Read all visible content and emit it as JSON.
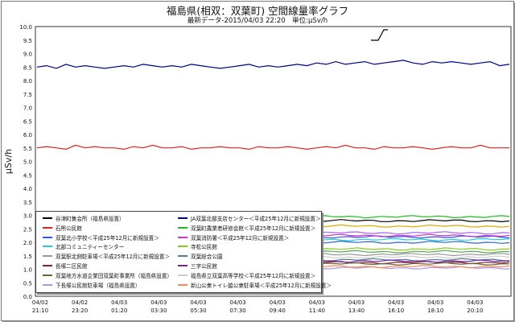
{
  "title": "福島県(相双：双葉町) 空間線量率グラフ",
  "subtitle": "最新データ-2015/04/03 22:20　単位:μSv/h",
  "chart_data": {
    "type": "line",
    "ylabel": "μSv/h",
    "ylim": [
      0,
      10
    ],
    "yticks": [
      "0.0",
      "0.5",
      "1.0",
      "1.5",
      "2.0",
      "2.5",
      "3.0",
      "3.5",
      "4.0",
      "4.5",
      "5.0",
      "5.5",
      "6.0",
      "6.5",
      "7.0",
      "7.5",
      "8.0",
      "8.5",
      "9.0",
      "9.5",
      "10.0"
    ],
    "xticks": [
      {
        "date": "04/02",
        "time": "21:10"
      },
      {
        "date": "04/02",
        "time": "23:20"
      },
      {
        "date": "04/03",
        "time": "01:20"
      },
      {
        "date": "04/03",
        "time": "03:30"
      },
      {
        "date": "04/03",
        "time": "05:30"
      },
      {
        "date": "04/03",
        "time": "07:30"
      },
      {
        "date": "04/03",
        "time": "09:40"
      },
      {
        "date": "04/03",
        "time": "11:40"
      },
      {
        "date": "04/03",
        "time": "13:40"
      },
      {
        "date": "04/03",
        "time": "16:10"
      },
      {
        "date": "04/03",
        "time": "18:10"
      },
      {
        "date": "04/03",
        "time": "20:10"
      }
    ],
    "grid": true,
    "legend_position": "bottom-left",
    "series": [
      {
        "name": "谷津町集会所（福島県設置）",
        "color": "#000000",
        "level": 2.8
      },
      {
        "name": "JA双葉北部支店センター＜平成25年12月に新規設置＞",
        "color": "#00008b",
        "values": [
          8.5,
          8.55,
          8.45,
          8.6,
          8.5,
          8.55,
          8.5,
          8.45,
          8.5,
          8.55,
          8.5,
          8.6,
          8.55,
          8.5,
          8.55,
          8.5,
          8.6,
          8.55,
          8.5,
          8.45,
          8.5,
          8.55,
          8.6,
          8.5,
          8.55,
          8.5,
          8.55,
          8.6,
          8.55,
          8.65,
          8.6,
          8.7,
          8.6,
          8.65,
          8.7,
          8.6,
          8.65,
          8.7,
          8.75,
          8.65,
          8.6,
          8.7,
          8.65,
          8.7,
          8.65,
          8.6,
          8.65,
          8.7,
          8.55,
          8.6
        ]
      },
      {
        "name": "石熊公民館",
        "color": "#dd2222",
        "values": [
          5.5,
          5.55,
          5.5,
          5.45,
          5.6,
          5.5,
          5.55,
          5.5,
          5.5,
          5.45,
          5.55,
          5.5,
          5.6,
          5.5,
          5.5,
          5.55,
          5.45,
          5.5,
          5.5,
          5.55,
          5.5,
          5.5,
          5.45,
          5.55,
          5.5,
          5.5,
          5.55,
          5.5,
          5.45,
          5.5,
          5.55,
          5.5,
          5.6,
          5.5,
          5.5,
          5.45,
          5.55,
          5.5,
          5.5,
          5.55,
          5.5,
          5.45,
          5.5,
          5.55,
          5.5,
          5.5,
          5.6,
          5.5,
          5.5,
          5.5
        ]
      },
      {
        "name": "双葉町農業者研修会館＜平成25年12月に新規設置＞",
        "color": "#22bb22",
        "level": 2.95
      },
      {
        "name": "双葉北小学校＜平成25年12月に新規設置＞",
        "color": "#3355ee",
        "level": 2.2
      },
      {
        "name": "双葉消防署＜平成25年12月に新規設置＞",
        "color": "#cc33cc",
        "level": 2.25
      },
      {
        "name": "北部コミュニティーセンター",
        "color": "#22ccdd",
        "level": 2.1
      },
      {
        "name": "寺松公民館",
        "color": "#88cc22",
        "level": 1.75
      },
      {
        "name": "双葉駅北側駐車場＜平成25年12月に新規設置＞",
        "color": "#999999",
        "level": 1.55
      },
      {
        "name": "双葉総合公園",
        "color": "#557799",
        "level": 1.35
      },
      {
        "name": "長塚二区民館",
        "color": "#882222",
        "level": 1.25
      },
      {
        "name": "三字公民館",
        "color": "#7722aa",
        "level": 1.3
      },
      {
        "name": "双葉地方水道企業団双葉町事業所（福島県設置）",
        "color": "#666633",
        "level": 1.2
      },
      {
        "name": "福島県立双葉高等学校＜平成25年12月に新規設置＞",
        "color": "#cccccc",
        "level": 1.45
      },
      {
        "name": "下長塚公民館駐車場（福島県設置）",
        "color": "#aa99ee",
        "level": 1.05
      },
      {
        "name": "新山公衆トイレ脇公衆駐車場＜平成25年12月に新規設置＞",
        "color": "#ff8855",
        "level": 1.1
      }
    ],
    "extra_levels": [
      {
        "color": "#ddaa00",
        "level": 2.6
      },
      {
        "color": "#aa66ee",
        "level": 2.35
      },
      {
        "color": "#3366cc",
        "level": 2.0
      },
      {
        "color": "#55aa55",
        "level": 1.65
      }
    ]
  }
}
